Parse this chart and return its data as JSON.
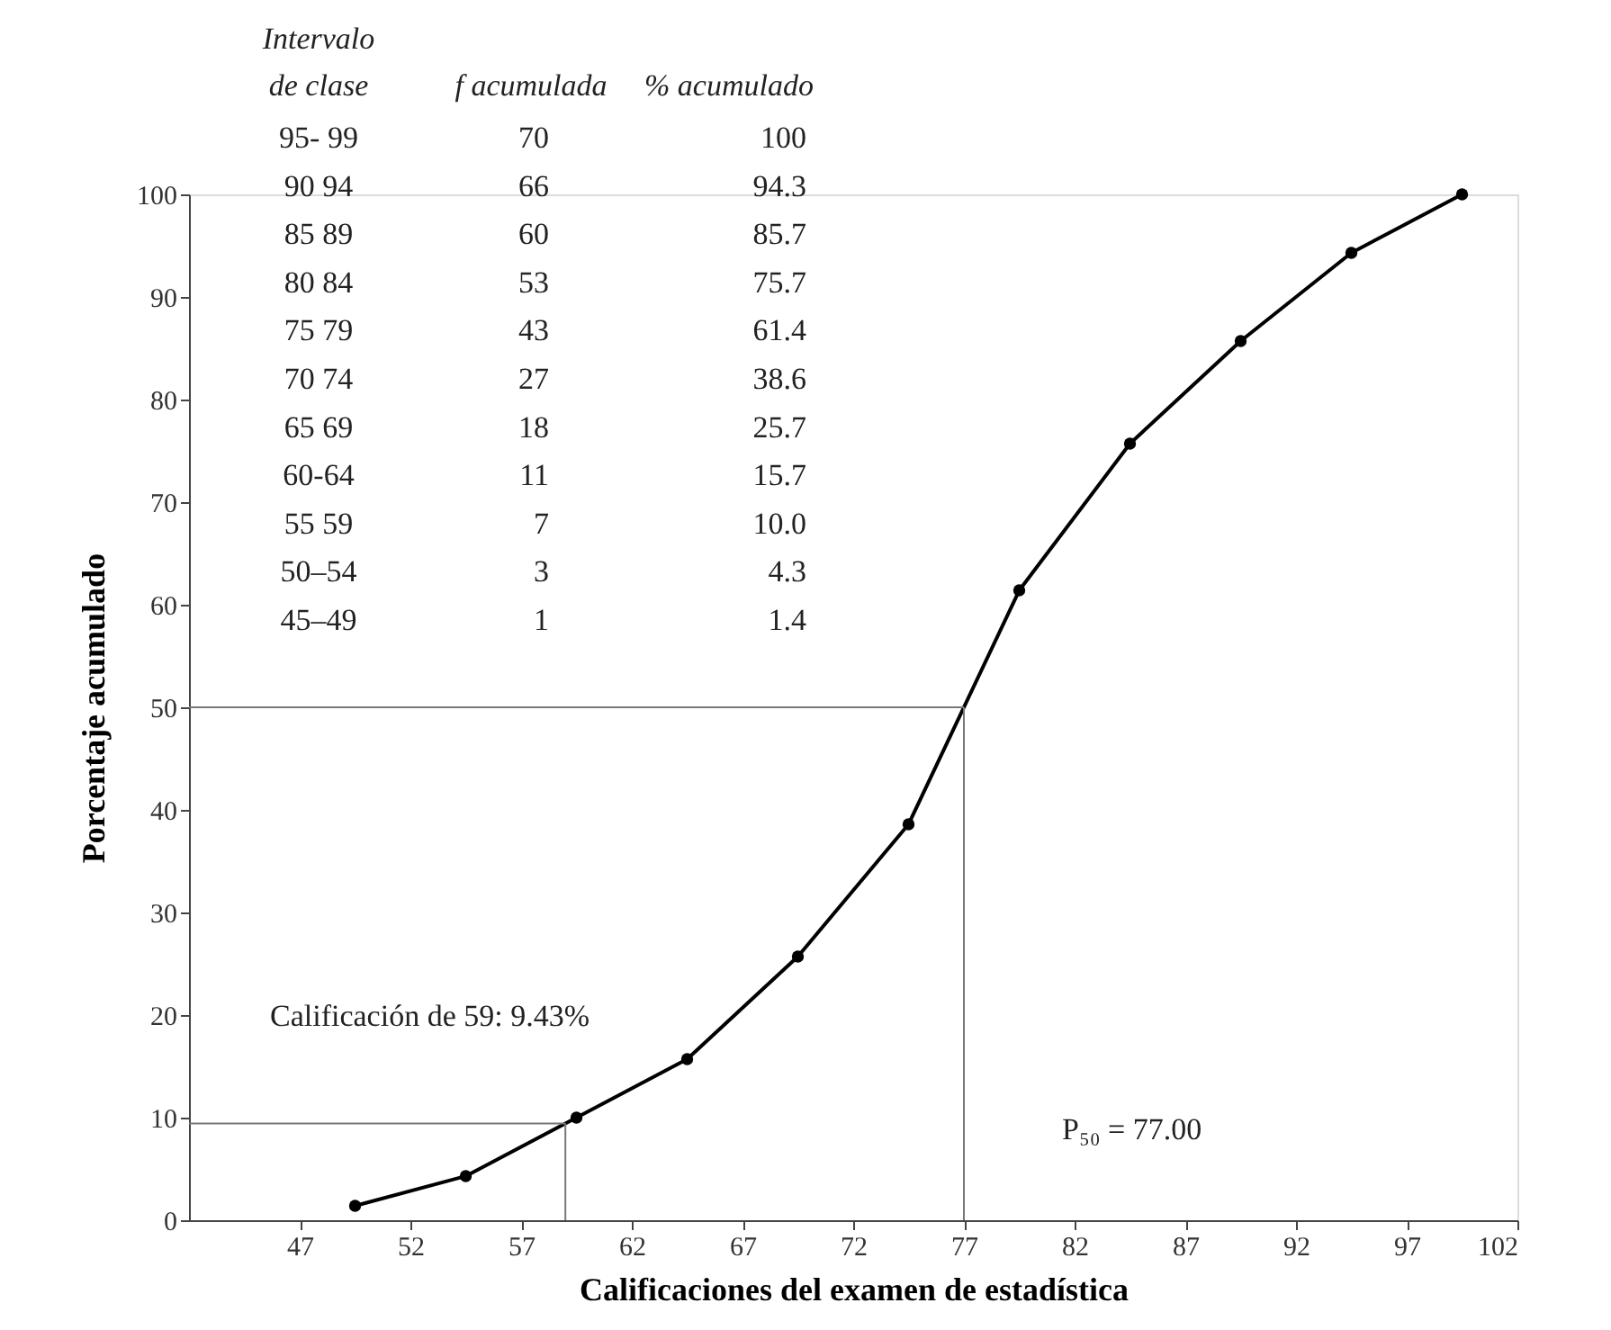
{
  "chart_data": {
    "type": "line",
    "xlabel": "Calificaciones del examen de estadística",
    "ylabel": "Porcentaje acumulado",
    "x": [
      49.5,
      54.5,
      59.5,
      64.5,
      69.5,
      74.5,
      79.5,
      84.5,
      89.5,
      94.5,
      99.5
    ],
    "series": [
      {
        "color": "#000000",
        "values": [
          1.4,
          4.3,
          10.0,
          15.7,
          25.7,
          38.6,
          61.4,
          75.7,
          85.7,
          94.3,
          100
        ]
      }
    ],
    "xlim": [
      42,
      102
    ],
    "xticks": [
      47,
      52,
      57,
      62,
      67,
      72,
      77,
      82,
      87,
      92,
      97,
      102
    ],
    "ylim": [
      0,
      100
    ],
    "yticks": [
      0,
      10,
      20,
      30,
      40,
      50,
      60,
      70,
      80,
      90,
      100
    ],
    "grid": false,
    "marker": "circle",
    "line_style": "solid",
    "ref_lines": [
      {
        "axis": "y",
        "value": 50,
        "color": "#777777"
      },
      {
        "axis": "x",
        "value": 77,
        "color": "#777777"
      },
      {
        "axis": "y",
        "value": 9.43,
        "color": "#777777"
      },
      {
        "axis": "x",
        "value": 59,
        "color": "#777777"
      }
    ],
    "annotations": [
      "Intervalo",
      "de clase",
      "f acumulada",
      "% acumulado",
      "95- 99",
      "70",
      "100",
      "90 94",
      "66",
      "94.3",
      "85 89",
      "60",
      "85.7",
      "80 84",
      "53",
      "75.7",
      "75 79",
      "43",
      "61.4",
      "70 74",
      "27",
      "38.6",
      "65 69",
      "18",
      "25.7",
      "60-64",
      "11",
      "15.7",
      "55 59",
      "7",
      "10.0",
      "50–54",
      "3",
      "4.3",
      "45–49",
      "1",
      "1.4",
      "Calificación de 59: 9.43%",
      "P₅₀ = 77.00"
    ]
  }
}
